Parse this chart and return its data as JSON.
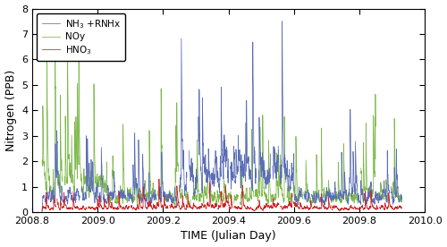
{
  "title": "",
  "xlabel": "TIME (Julian Day)",
  "ylabel": "Nitrogen (PPB)",
  "xlim": [
    2008.8,
    2010.0
  ],
  "ylim": [
    0,
    8
  ],
  "yticks": [
    0,
    1,
    2,
    3,
    4,
    5,
    6,
    7,
    8
  ],
  "xticks": [
    2008.8,
    2009.0,
    2009.2,
    2009.4,
    2009.6,
    2009.8,
    2010.0
  ],
  "legend_labels": [
    "NH$_3$ +RNHx",
    "NOy",
    "HNO$_3$"
  ],
  "line_colors": [
    "#5b6eb5",
    "#7db84a",
    "#cc2222"
  ],
  "background_color": "#ffffff",
  "seed": 7,
  "n_points": 3000,
  "x_start": 2008.83,
  "x_end": 2009.93
}
